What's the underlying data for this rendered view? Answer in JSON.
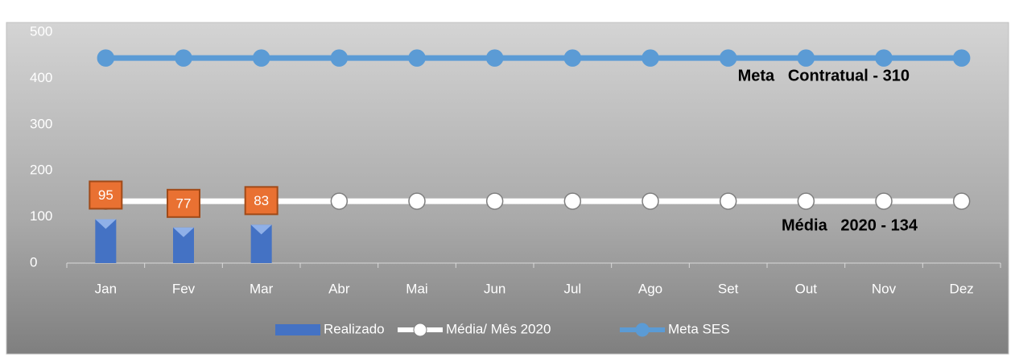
{
  "chart_data": {
    "type": "bar_line",
    "categories": [
      "Jan",
      "Fev",
      "Mar",
      "Abr",
      "Mai",
      "Jun",
      "Jul",
      "Ago",
      "Set",
      "Out",
      "Nov",
      "Dez"
    ],
    "series": [
      {
        "name": "Realizado",
        "type": "bar",
        "color": "#4472c4",
        "values": [
          95,
          77,
          83,
          null,
          null,
          null,
          null,
          null,
          null,
          null,
          null,
          null
        ]
      },
      {
        "name": "Média/ Mês 2020",
        "type": "line",
        "color": "#ffffff",
        "values": [
          134,
          134,
          134,
          134,
          134,
          134,
          134,
          134,
          134,
          134,
          134,
          134
        ]
      },
      {
        "name": "Meta SES",
        "type": "line",
        "color": "#5b9bd5",
        "values": [
          444,
          444,
          444,
          444,
          444,
          444,
          444,
          444,
          444,
          444,
          444,
          444
        ]
      }
    ],
    "annotations": [
      "Meta   Contratual - 310",
      "Média   2020 - 134"
    ],
    "ylim": [
      0,
      500
    ],
    "yticks": [
      0,
      100,
      200,
      300,
      400,
      500
    ],
    "grid": false,
    "legend": "bottom"
  }
}
